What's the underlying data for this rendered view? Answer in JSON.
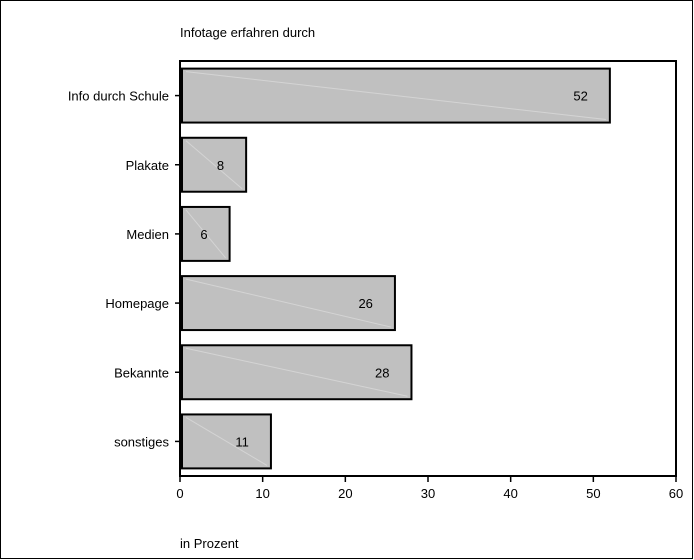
{
  "chart_data": {
    "type": "bar",
    "orientation": "horizontal",
    "title": "Infotage erfahren durch",
    "xlabel": "in Prozent",
    "ylabel": "",
    "categories": [
      "Info durch Schule",
      "Plakate",
      "Medien",
      "Homepage",
      "Bekannte",
      "sonstiges"
    ],
    "values": [
      52,
      8,
      6,
      26,
      28,
      11
    ],
    "data_labels": [
      "52",
      "8",
      "6",
      "26",
      "28",
      "11"
    ],
    "xlim": [
      0,
      60
    ],
    "xticks": [
      "0",
      "10",
      "20",
      "30",
      "40",
      "50",
      "60"
    ],
    "grid": false,
    "legend": "none",
    "colors": {
      "bar": "#c0c0c0",
      "stroke": "#000000"
    }
  }
}
